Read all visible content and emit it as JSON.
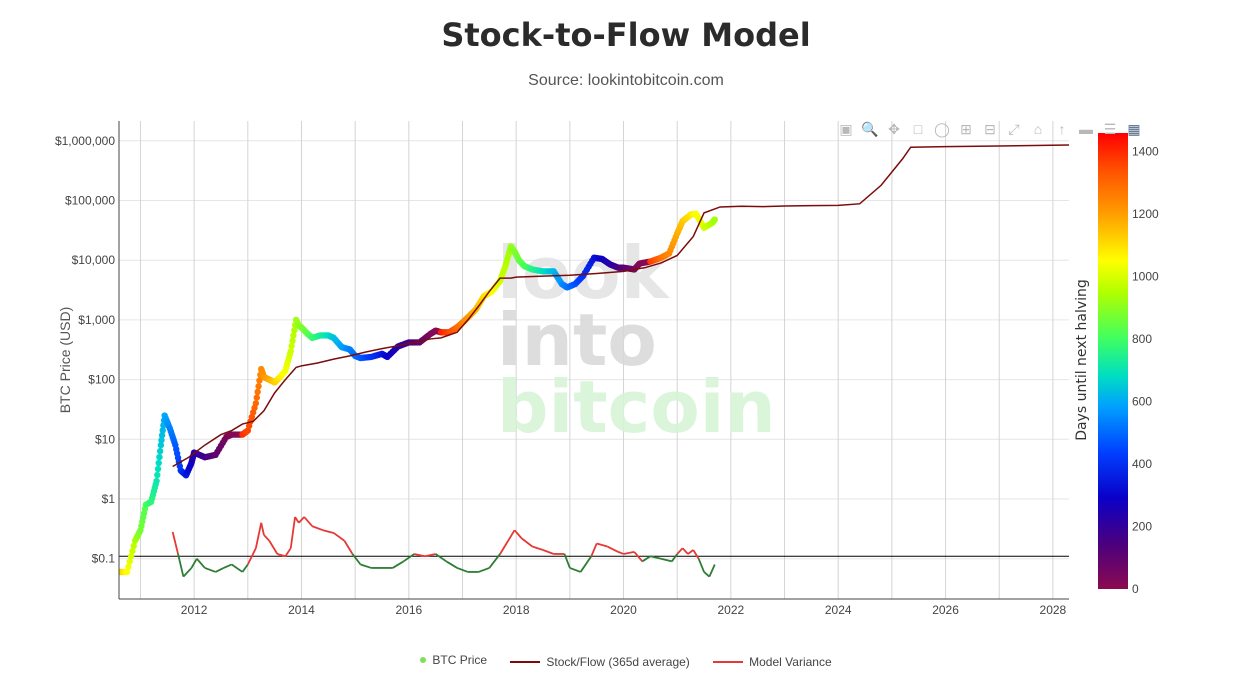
{
  "page": {
    "title": "Stock-to-Flow Model",
    "subtitle": "Source: lookintobitcoin.com"
  },
  "watermark": {
    "lines": [
      "look",
      "into",
      "bitcoin"
    ]
  },
  "toolbar_icons": [
    "camera-icon",
    "zoom-icon",
    "pan-icon",
    "box-select-icon",
    "lasso-icon",
    "zoom-in-icon",
    "zoom-out-icon",
    "autoscale-icon",
    "home-icon",
    "spike-icon",
    "hover-icon",
    "compare-icon",
    "logo-icon"
  ],
  "colors": {
    "stock_flow": "#7a0c0c",
    "model_variance_high": "#e53935",
    "model_variance_low": "#2e7d32",
    "reference_line": "#000000",
    "grid": "#e6e6e6"
  },
  "chart_data": {
    "type": "scatter",
    "title": "Stock-to-Flow Model",
    "subtitle": "Source: lookintobitcoin.com",
    "ylabel": "BTC Price (USD)",
    "yscale": "log",
    "xlim": [
      2010.6,
      2028.3
    ],
    "y_ticks": [
      {
        "value": 0.1,
        "label": "$0.1"
      },
      {
        "value": 1,
        "label": "$1"
      },
      {
        "value": 10,
        "label": "$10"
      },
      {
        "value": 100,
        "label": "$100"
      },
      {
        "value": 1000,
        "label": "$1,000"
      },
      {
        "value": 10000,
        "label": "$10,000"
      },
      {
        "value": 100000,
        "label": "$100,000"
      },
      {
        "value": 1000000,
        "label": "$1,000,000"
      }
    ],
    "x_ticks": [
      {
        "value": 2012,
        "label": "2012"
      },
      {
        "value": 2014,
        "label": "2014"
      },
      {
        "value": 2016,
        "label": "2016"
      },
      {
        "value": 2018,
        "label": "2018"
      },
      {
        "value": 2020,
        "label": "2020"
      },
      {
        "value": 2022,
        "label": "2022"
      },
      {
        "value": 2024,
        "label": "2024"
      },
      {
        "value": 2026,
        "label": "2026"
      },
      {
        "value": 2028,
        "label": "2028"
      }
    ],
    "reference_line_y": 0.11,
    "grid": true,
    "legend_position": "bottom",
    "colorbar": {
      "title": "Days until next halving",
      "range": [
        0,
        1460
      ],
      "ticks": [
        {
          "value": 0,
          "label": "0"
        },
        {
          "value": 200,
          "label": "200"
        },
        {
          "value": 400,
          "label": "400"
        },
        {
          "value": 600,
          "label": "600"
        },
        {
          "value": 800,
          "label": "800"
        },
        {
          "value": 1000,
          "label": "1000"
        },
        {
          "value": 1200,
          "label": "1200"
        },
        {
          "value": 1400,
          "label": "1400"
        }
      ]
    },
    "halvings": [
      2012.91,
      2016.53,
      2020.36,
      2024.3
    ],
    "series": [
      {
        "name": "BTC Price",
        "kind": "markers",
        "x": [
          2010.6,
          2010.75,
          2010.9,
          2011.0,
          2011.1,
          2011.2,
          2011.3,
          2011.38,
          2011.45,
          2011.55,
          2011.65,
          2011.75,
          2011.85,
          2011.95,
          2012.0,
          2012.2,
          2012.4,
          2012.6,
          2012.7,
          2012.9,
          2013.0,
          2013.15,
          2013.25,
          2013.3,
          2013.4,
          2013.5,
          2013.6,
          2013.7,
          2013.8,
          2013.9,
          2013.95,
          2014.0,
          2014.1,
          2014.2,
          2014.35,
          2014.5,
          2014.6,
          2014.75,
          2014.9,
          2015.0,
          2015.1,
          2015.3,
          2015.5,
          2015.6,
          2015.8,
          2016.0,
          2016.2,
          2016.4,
          2016.5,
          2016.6,
          2016.75,
          2016.9,
          2017.0,
          2017.1,
          2017.25,
          2017.4,
          2017.55,
          2017.7,
          2017.8,
          2017.9,
          2017.97,
          2018.05,
          2018.15,
          2018.3,
          2018.5,
          2018.7,
          2018.85,
          2018.95,
          2019.1,
          2019.25,
          2019.45,
          2019.6,
          2019.75,
          2019.9,
          2020.0,
          2020.2,
          2020.3,
          2020.5,
          2020.7,
          2020.85,
          2021.0,
          2021.1,
          2021.25,
          2021.35,
          2021.5,
          2021.65,
          2021.7
        ],
        "y": [
          0.06,
          0.06,
          0.2,
          0.3,
          0.8,
          0.9,
          2.0,
          8.0,
          25.0,
          15.0,
          8.0,
          3.0,
          2.5,
          4.0,
          6.0,
          5.0,
          5.5,
          11.0,
          12.0,
          12.0,
          14.0,
          40.0,
          150.0,
          110.0,
          100.0,
          90.0,
          110.0,
          140.0,
          300.0,
          1000.0,
          800.0,
          750.0,
          600.0,
          500.0,
          550.0,
          550.0,
          500.0,
          350.0,
          320.0,
          250.0,
          230.0,
          240.0,
          270.0,
          240.0,
          360.0,
          420.0,
          420.0,
          580.0,
          660.0,
          620.0,
          620.0,
          750.0,
          900.0,
          1100.0,
          1500.0,
          2500.0,
          3000.0,
          4500.0,
          8000.0,
          17000.0,
          14000.0,
          10000.0,
          8000.0,
          7000.0,
          6500.0,
          6500.0,
          4000.0,
          3500.0,
          4000.0,
          5500.0,
          11000.0,
          10500.0,
          8500.0,
          7500.0,
          7500.0,
          7000.0,
          8800.0,
          9500.0,
          11000.0,
          13000.0,
          28000.0,
          45000.0,
          58000.0,
          60000.0,
          35000.0,
          42000.0,
          48000.0
        ],
        "color_value": [
          1150,
          1050,
          950,
          870,
          820,
          770,
          710,
          650,
          600,
          540,
          480,
          420,
          350,
          280,
          230,
          170,
          100,
          40,
          20,
          1400,
          1360,
          1300,
          1240,
          1220,
          1180,
          1130,
          1080,
          1040,
          990,
          930,
          910,
          890,
          850,
          790,
          740,
          690,
          640,
          590,
          540,
          510,
          480,
          420,
          350,
          300,
          230,
          160,
          100,
          40,
          5,
          1420,
          1360,
          1300,
          1260,
          1220,
          1160,
          1110,
          1050,
          990,
          960,
          920,
          890,
          860,
          820,
          760,
          690,
          620,
          560,
          520,
          470,
          410,
          340,
          290,
          230,
          160,
          120,
          60,
          20,
          1380,
          1290,
          1240,
          1180,
          1140,
          1090,
          1050,
          1000,
          950,
          930
        ]
      },
      {
        "name": "Stock/Flow (365d average)",
        "kind": "line",
        "x": [
          2011.6,
          2011.9,
          2012.2,
          2012.5,
          2012.7,
          2012.9,
          2013.1,
          2013.3,
          2013.5,
          2013.7,
          2013.9,
          2014.0,
          2014.3,
          2014.6,
          2014.9,
          2015.2,
          2015.5,
          2015.8,
          2016.1,
          2016.4,
          2016.6,
          2016.9,
          2017.1,
          2017.3,
          2017.5,
          2017.7,
          2017.9,
          2018.0,
          2018.5,
          2019.0,
          2019.5,
          2020.0,
          2020.4,
          2020.7,
          2021.0,
          2021.3,
          2021.5,
          2021.8,
          2022.2,
          2022.6,
          2023.0,
          2023.5,
          2024.0,
          2024.4,
          2024.8,
          2025.0,
          2025.2,
          2025.35,
          2026.0,
          2027.0,
          2028.3
        ],
        "y": [
          3.5,
          5.0,
          8.0,
          12.0,
          14.0,
          18.0,
          20.0,
          30.0,
          60.0,
          100.0,
          160.0,
          170.0,
          190.0,
          220.0,
          250.0,
          290.0,
          330.0,
          370.0,
          420.0,
          480.0,
          500.0,
          620.0,
          1000.0,
          1700.0,
          3000.0,
          5000.0,
          5000.0,
          5200.0,
          5400.0,
          5600.0,
          6000.0,
          6500.0,
          7500.0,
          9000.0,
          12000.0,
          25000.0,
          62000.0,
          78000.0,
          80000.0,
          79000.0,
          81000.0,
          82000.0,
          83000.0,
          88000.0,
          180000.0,
          300000.0,
          500000.0,
          780000.0,
          800000.0,
          820000.0,
          850000.0
        ]
      },
      {
        "name": "Model Variance",
        "kind": "line",
        "x": [
          2011.6,
          2011.7,
          2011.8,
          2011.95,
          2012.05,
          2012.2,
          2012.4,
          2012.55,
          2012.7,
          2012.9,
          2013.0,
          2013.15,
          2013.25,
          2013.3,
          2013.4,
          2013.55,
          2013.7,
          2013.8,
          2013.88,
          2013.95,
          2014.05,
          2014.2,
          2014.4,
          2014.6,
          2014.8,
          2014.95,
          2015.1,
          2015.3,
          2015.5,
          2015.7,
          2015.9,
          2016.1,
          2016.3,
          2016.5,
          2016.7,
          2016.9,
          2017.1,
          2017.3,
          2017.5,
          2017.7,
          2017.85,
          2017.97,
          2018.1,
          2018.3,
          2018.5,
          2018.7,
          2018.9,
          2019.0,
          2019.2,
          2019.4,
          2019.5,
          2019.7,
          2019.9,
          2020.0,
          2020.2,
          2020.35,
          2020.5,
          2020.7,
          2020.9,
          2021.0,
          2021.1,
          2021.2,
          2021.3,
          2021.4,
          2021.5,
          2021.6,
          2021.7
        ],
        "y": [
          0.28,
          0.12,
          0.05,
          0.07,
          0.1,
          0.07,
          0.06,
          0.07,
          0.08,
          0.06,
          0.08,
          0.15,
          0.4,
          0.25,
          0.2,
          0.12,
          0.11,
          0.15,
          0.5,
          0.4,
          0.5,
          0.35,
          0.3,
          0.27,
          0.2,
          0.12,
          0.08,
          0.07,
          0.07,
          0.07,
          0.09,
          0.12,
          0.11,
          0.12,
          0.09,
          0.07,
          0.06,
          0.06,
          0.07,
          0.12,
          0.2,
          0.3,
          0.22,
          0.16,
          0.14,
          0.12,
          0.12,
          0.07,
          0.06,
          0.11,
          0.18,
          0.16,
          0.13,
          0.12,
          0.13,
          0.09,
          0.11,
          0.1,
          0.09,
          0.12,
          0.15,
          0.12,
          0.14,
          0.1,
          0.06,
          0.05,
          0.08
        ]
      }
    ]
  },
  "legend": {
    "items": [
      {
        "label": "BTC Price",
        "kind": "marker",
        "color": "#7ee05a"
      },
      {
        "label": "Stock/Flow (365d average)",
        "kind": "line",
        "color": "#7a0c0c"
      },
      {
        "label": "Model Variance",
        "kind": "line",
        "color": "#e53935"
      }
    ]
  }
}
